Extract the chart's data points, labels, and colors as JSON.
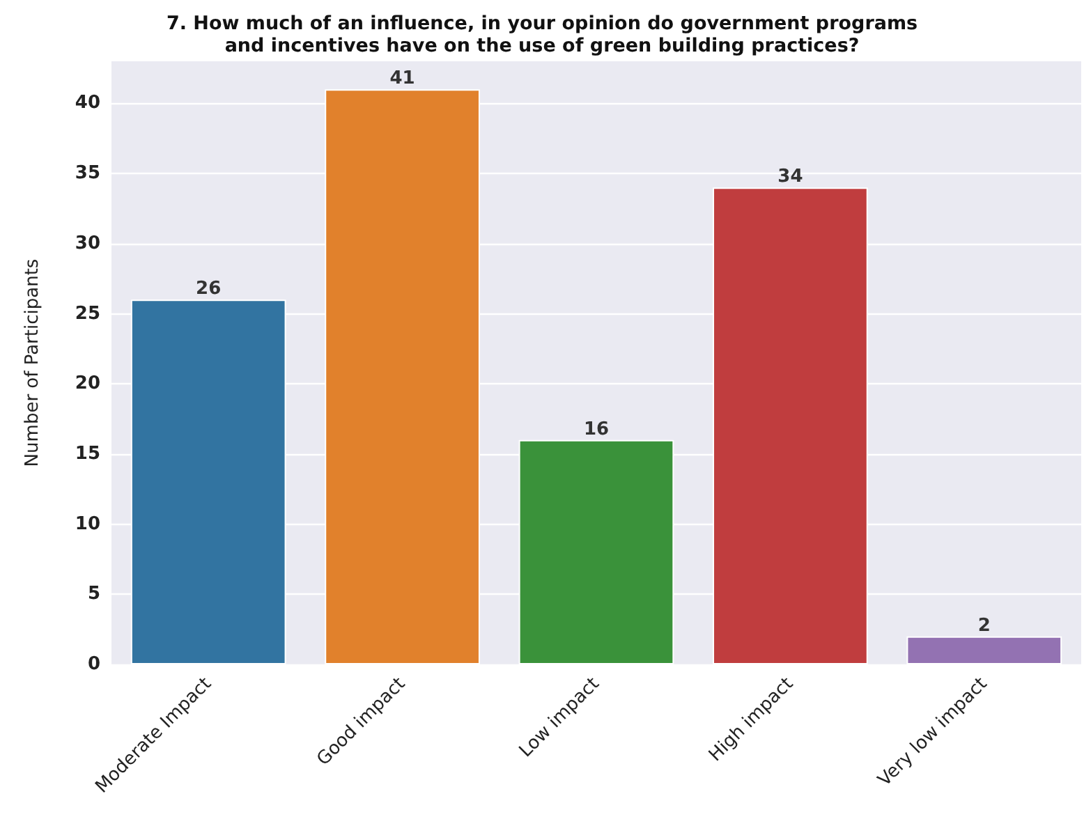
{
  "chart_data": {
    "type": "bar",
    "title": "7. How much of an influence, in your opinion do government programs\nand incentives have on the use of green building practices?",
    "ylabel": "Number of Participants",
    "categories": [
      "Moderate Impact",
      "Good impact",
      "Low impact",
      "High impact",
      "Very low impact"
    ],
    "values": [
      26,
      41,
      16,
      34,
      2
    ],
    "colors": [
      "#3274a1",
      "#e1812c",
      "#3a923a",
      "#c03d3e",
      "#9372b2"
    ],
    "ylim": [
      0,
      43
    ],
    "yticks": [
      0,
      5,
      10,
      15,
      20,
      25,
      30,
      35,
      40
    ],
    "grid": "y",
    "data_labels": true
  }
}
